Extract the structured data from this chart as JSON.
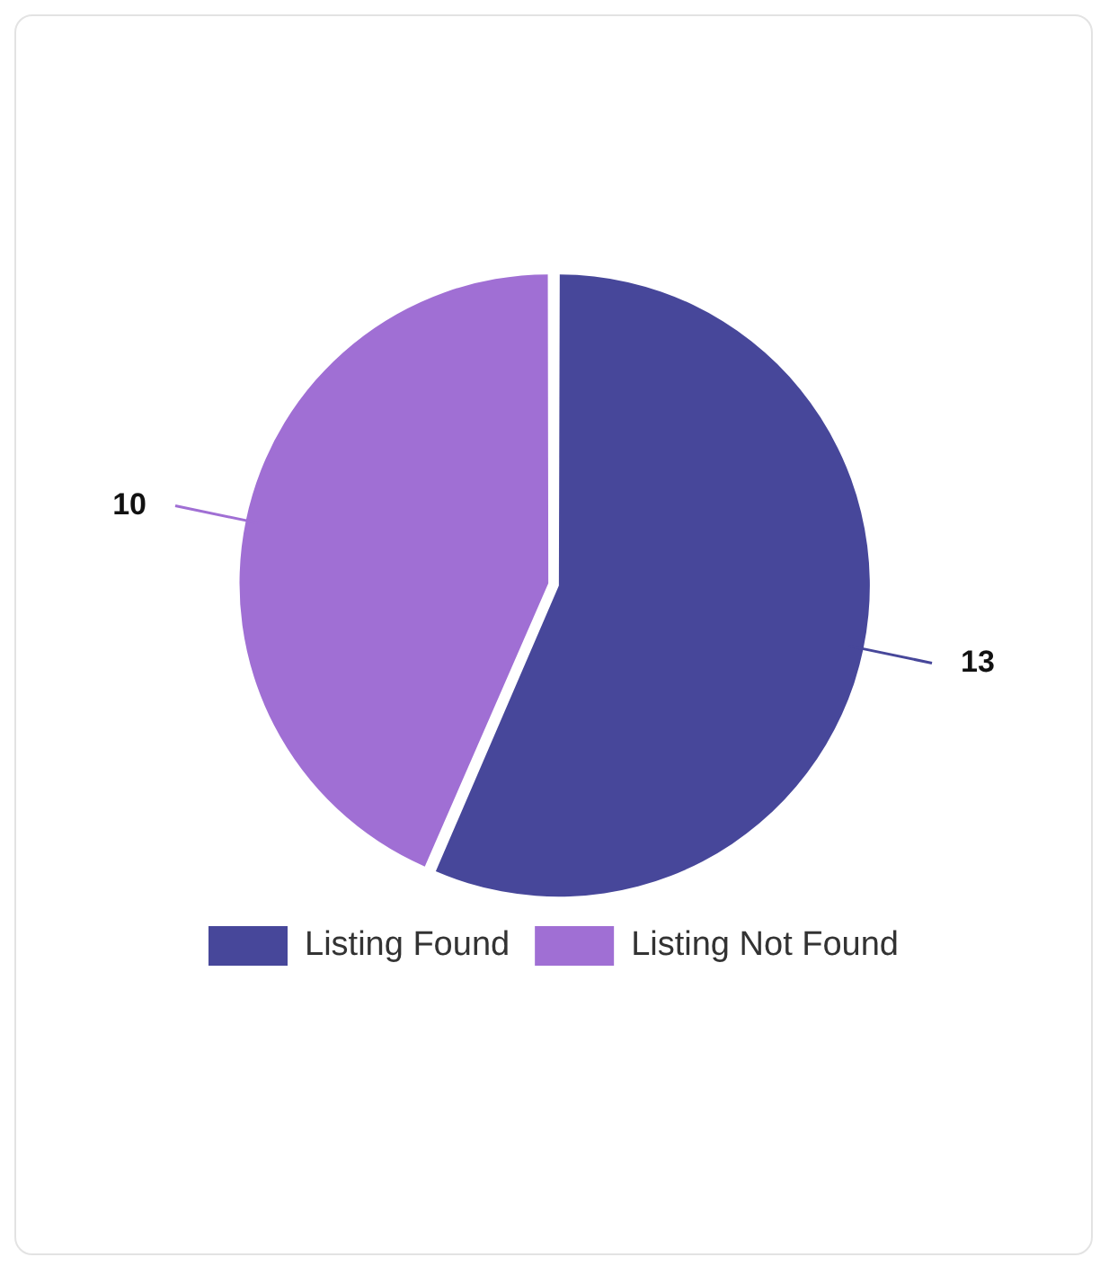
{
  "chart_data": {
    "type": "pie",
    "categories": [
      "Listing Found",
      "Listing Not Found"
    ],
    "values": [
      13,
      10
    ],
    "colors": [
      "#47479a",
      "#a06fd4"
    ],
    "data_labels": true,
    "legend": "bottom"
  }
}
